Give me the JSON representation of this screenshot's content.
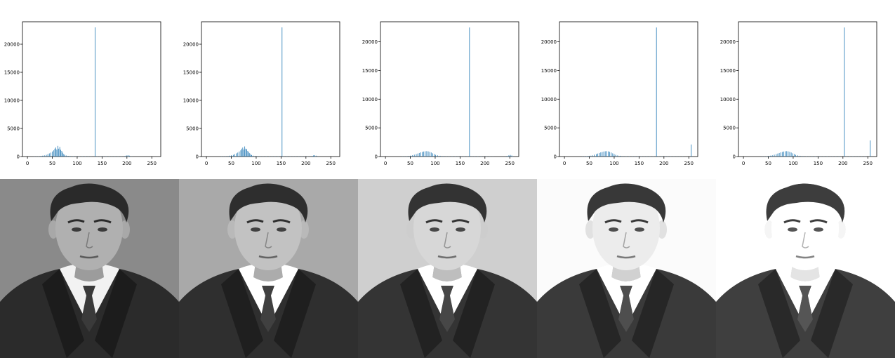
{
  "chart_data": [
    {
      "type": "bar",
      "title": "",
      "xlabel": "",
      "ylabel": "",
      "xlim": [
        -10,
        268
      ],
      "ylim": [
        0,
        24000
      ],
      "xticks": [
        0,
        50,
        100,
        150,
        200,
        250
      ],
      "yticks": [
        0,
        5000,
        10000,
        15000,
        20000
      ],
      "grid": false,
      "bins": [
        [
          14,
          20
        ],
        [
          18,
          30
        ],
        [
          22,
          50
        ],
        [
          26,
          90
        ],
        [
          30,
          150
        ],
        [
          34,
          220
        ],
        [
          38,
          300
        ],
        [
          41,
          420
        ],
        [
          44,
          560
        ],
        [
          47,
          700
        ],
        [
          50,
          900
        ],
        [
          53,
          1100
        ],
        [
          55,
          1400
        ],
        [
          57,
          1600
        ],
        [
          59,
          1250
        ],
        [
          61,
          1900
        ],
        [
          63,
          1400
        ],
        [
          65,
          1700
        ],
        [
          67,
          1200
        ],
        [
          69,
          1000
        ],
        [
          71,
          700
        ],
        [
          73,
          450
        ],
        [
          75,
          300
        ],
        [
          78,
          180
        ],
        [
          82,
          120
        ],
        [
          86,
          90
        ],
        [
          92,
          70
        ],
        [
          98,
          60
        ],
        [
          104,
          60
        ],
        [
          110,
          60
        ],
        [
          116,
          60
        ],
        [
          122,
          60
        ],
        [
          128,
          60
        ],
        [
          136,
          23000
        ],
        [
          140,
          60
        ],
        [
          146,
          60
        ],
        [
          152,
          60
        ],
        [
          158,
          60
        ],
        [
          164,
          60
        ],
        [
          170,
          60
        ],
        [
          176,
          50
        ],
        [
          182,
          50
        ],
        [
          188,
          50
        ],
        [
          196,
          100
        ],
        [
          199,
          200
        ],
        [
          202,
          250
        ],
        [
          205,
          150
        ],
        [
          210,
          30
        ]
      ]
    },
    {
      "type": "bar",
      "title": "",
      "xlabel": "",
      "ylabel": "",
      "xlim": [
        -10,
        268
      ],
      "ylim": [
        0,
        24000
      ],
      "xticks": [
        0,
        50,
        100,
        150,
        200,
        250
      ],
      "yticks": [
        0,
        5000,
        10000,
        15000,
        20000
      ],
      "grid": false,
      "bins": [
        [
          30,
          20
        ],
        [
          34,
          30
        ],
        [
          38,
          50
        ],
        [
          42,
          90
        ],
        [
          46,
          150
        ],
        [
          50,
          220
        ],
        [
          54,
          300
        ],
        [
          57,
          420
        ],
        [
          60,
          560
        ],
        [
          63,
          700
        ],
        [
          66,
          900
        ],
        [
          69,
          1100
        ],
        [
          71,
          1400
        ],
        [
          73,
          1600
        ],
        [
          75,
          1250
        ],
        [
          77,
          1800
        ],
        [
          79,
          1400
        ],
        [
          81,
          1300
        ],
        [
          83,
          1000
        ],
        [
          85,
          800
        ],
        [
          87,
          600
        ],
        [
          89,
          400
        ],
        [
          91,
          260
        ],
        [
          94,
          160
        ],
        [
          98,
          110
        ],
        [
          102,
          80
        ],
        [
          108,
          70
        ],
        [
          114,
          60
        ],
        [
          120,
          60
        ],
        [
          126,
          60
        ],
        [
          132,
          60
        ],
        [
          138,
          60
        ],
        [
          144,
          60
        ],
        [
          152,
          23000
        ],
        [
          156,
          60
        ],
        [
          162,
          60
        ],
        [
          168,
          60
        ],
        [
          174,
          60
        ],
        [
          180,
          60
        ],
        [
          186,
          60
        ],
        [
          192,
          50
        ],
        [
          198,
          50
        ],
        [
          204,
          50
        ],
        [
          212,
          100
        ],
        [
          215,
          200
        ],
        [
          218,
          250
        ],
        [
          221,
          150
        ],
        [
          226,
          30
        ]
      ]
    },
    {
      "type": "bar",
      "title": "",
      "xlabel": "",
      "ylabel": "",
      "xlim": [
        -10,
        268
      ],
      "ylim": [
        0,
        23500
      ],
      "xticks": [
        0,
        50,
        100,
        150,
        200,
        250
      ],
      "yticks": [
        0,
        5000,
        10000,
        15000,
        20000
      ],
      "grid": false,
      "bins": [
        [
          34,
          20
        ],
        [
          38,
          40
        ],
        [
          42,
          60
        ],
        [
          46,
          100
        ],
        [
          50,
          150
        ],
        [
          54,
          220
        ],
        [
          58,
          320
        ],
        [
          62,
          420
        ],
        [
          65,
          520
        ],
        [
          68,
          620
        ],
        [
          71,
          720
        ],
        [
          74,
          800
        ],
        [
          77,
          870
        ],
        [
          80,
          920
        ],
        [
          83,
          940
        ],
        [
          86,
          900
        ],
        [
          89,
          820
        ],
        [
          92,
          700
        ],
        [
          95,
          560
        ],
        [
          98,
          420
        ],
        [
          101,
          300
        ],
        [
          105,
          200
        ],
        [
          110,
          130
        ],
        [
          116,
          80
        ],
        [
          122,
          60
        ],
        [
          128,
          60
        ],
        [
          134,
          60
        ],
        [
          140,
          60
        ],
        [
          146,
          60
        ],
        [
          152,
          60
        ],
        [
          158,
          60
        ],
        [
          164,
          60
        ],
        [
          169,
          22500
        ],
        [
          174,
          60
        ],
        [
          180,
          60
        ],
        [
          186,
          60
        ],
        [
          192,
          60
        ],
        [
          198,
          50
        ],
        [
          204,
          50
        ],
        [
          210,
          40
        ],
        [
          216,
          30
        ],
        [
          244,
          100
        ],
        [
          248,
          200
        ],
        [
          251,
          280
        ],
        [
          254,
          180
        ],
        [
          256,
          60
        ]
      ]
    },
    {
      "type": "bar",
      "title": "",
      "xlabel": "",
      "ylabel": "",
      "xlim": [
        -10,
        268
      ],
      "ylim": [
        0,
        23500
      ],
      "xticks": [
        0,
        50,
        100,
        150,
        200,
        250
      ],
      "yticks": [
        0,
        5000,
        10000,
        15000,
        20000
      ],
      "grid": false,
      "bins": [
        [
          36,
          20
        ],
        [
          40,
          40
        ],
        [
          44,
          60
        ],
        [
          48,
          100
        ],
        [
          52,
          150
        ],
        [
          56,
          220
        ],
        [
          60,
          320
        ],
        [
          64,
          420
        ],
        [
          67,
          520
        ],
        [
          70,
          620
        ],
        [
          73,
          720
        ],
        [
          76,
          800
        ],
        [
          79,
          870
        ],
        [
          82,
          920
        ],
        [
          85,
          940
        ],
        [
          88,
          900
        ],
        [
          91,
          820
        ],
        [
          94,
          700
        ],
        [
          97,
          560
        ],
        [
          100,
          420
        ],
        [
          103,
          300
        ],
        [
          107,
          200
        ],
        [
          112,
          130
        ],
        [
          118,
          80
        ],
        [
          124,
          60
        ],
        [
          130,
          60
        ],
        [
          136,
          60
        ],
        [
          142,
          60
        ],
        [
          148,
          60
        ],
        [
          154,
          60
        ],
        [
          160,
          60
        ],
        [
          166,
          60
        ],
        [
          172,
          60
        ],
        [
          178,
          60
        ],
        [
          185,
          22500
        ],
        [
          190,
          60
        ],
        [
          196,
          60
        ],
        [
          202,
          60
        ],
        [
          208,
          60
        ],
        [
          214,
          50
        ],
        [
          220,
          50
        ],
        [
          226,
          50
        ],
        [
          232,
          40
        ],
        [
          238,
          30
        ],
        [
          255,
          2100
        ]
      ]
    },
    {
      "type": "bar",
      "title": "",
      "xlabel": "",
      "ylabel": "",
      "xlim": [
        -10,
        268
      ],
      "ylim": [
        0,
        23500
      ],
      "xticks": [
        0,
        50,
        100,
        150,
        200,
        250
      ],
      "yticks": [
        0,
        5000,
        10000,
        15000,
        20000
      ],
      "grid": false,
      "bins": [
        [
          38,
          20
        ],
        [
          42,
          40
        ],
        [
          46,
          60
        ],
        [
          50,
          100
        ],
        [
          54,
          150
        ],
        [
          58,
          220
        ],
        [
          62,
          320
        ],
        [
          66,
          420
        ],
        [
          69,
          520
        ],
        [
          72,
          620
        ],
        [
          75,
          720
        ],
        [
          78,
          800
        ],
        [
          81,
          870
        ],
        [
          84,
          920
        ],
        [
          87,
          940
        ],
        [
          90,
          900
        ],
        [
          93,
          820
        ],
        [
          96,
          700
        ],
        [
          99,
          560
        ],
        [
          102,
          420
        ],
        [
          105,
          300
        ],
        [
          109,
          200
        ],
        [
          114,
          130
        ],
        [
          120,
          80
        ],
        [
          126,
          60
        ],
        [
          132,
          60
        ],
        [
          138,
          60
        ],
        [
          144,
          60
        ],
        [
          150,
          60
        ],
        [
          156,
          60
        ],
        [
          162,
          60
        ],
        [
          168,
          60
        ],
        [
          174,
          60
        ],
        [
          180,
          60
        ],
        [
          186,
          60
        ],
        [
          192,
          60
        ],
        [
          203,
          22500
        ],
        [
          208,
          60
        ],
        [
          214,
          60
        ],
        [
          220,
          60
        ],
        [
          226,
          50
        ],
        [
          232,
          50
        ],
        [
          238,
          40
        ],
        [
          244,
          30
        ],
        [
          255,
          2800
        ]
      ]
    }
  ],
  "photos": [
    {
      "background": "#8a8a8a",
      "brightness": 1.0,
      "alt_icon": "portrait-photo"
    },
    {
      "background": "#9a9a9a",
      "brightness": 1.1,
      "alt_icon": "portrait-photo"
    },
    {
      "background": "#aaaaaa",
      "brightness": 1.22,
      "alt_icon": "portrait-photo"
    },
    {
      "background": "#bbbbbb",
      "brightness": 1.34,
      "alt_icon": "portrait-photo"
    },
    {
      "background": "#c8c8c8",
      "brightness": 1.46,
      "alt_icon": "portrait-photo"
    }
  ],
  "colors": {
    "bar": "#1f77b4",
    "axes": "#000000"
  }
}
